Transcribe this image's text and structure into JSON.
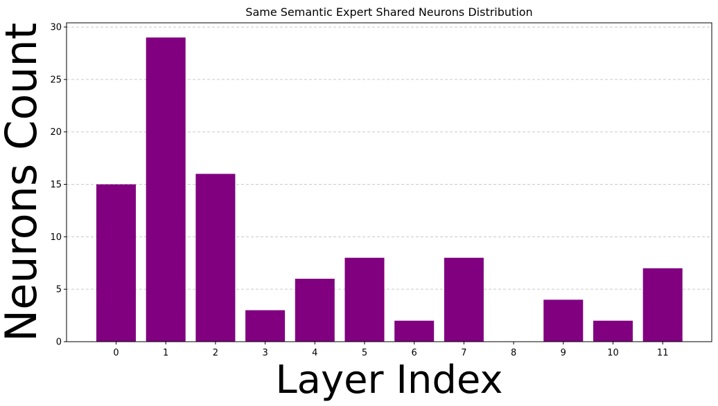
{
  "chart_data": {
    "type": "bar",
    "title": "Same Semantic Expert Shared Neurons Distribution",
    "xlabel": "Layer Index",
    "ylabel": "Neurons Count",
    "categories": [
      "0",
      "1",
      "2",
      "3",
      "4",
      "5",
      "6",
      "7",
      "8",
      "9",
      "10",
      "11"
    ],
    "values": [
      15,
      29,
      16,
      3,
      6,
      8,
      2,
      8,
      0,
      4,
      2,
      7
    ],
    "ylim": [
      0,
      30.4
    ],
    "yticks": [
      0,
      5,
      10,
      15,
      20,
      25,
      30
    ],
    "grid": "y-dashed",
    "bar_color": "#800080",
    "grid_color": "#c8c8c8"
  }
}
